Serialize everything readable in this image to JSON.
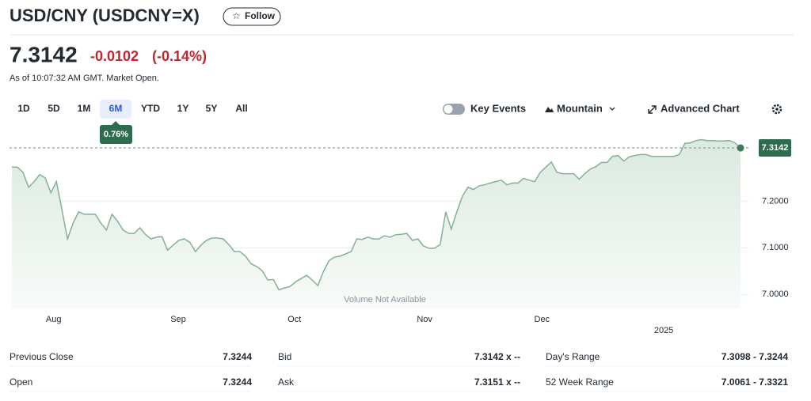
{
  "header": {
    "title": "USD/CNY (USDCNY=X)",
    "follow": "Follow",
    "price": "7.3142",
    "change": "-0.0102",
    "change_pct": "(-0.14%)",
    "as_of": "As of 10:07:32 AM GMT. Market Open."
  },
  "toolbar": {
    "ranges": [
      "1D",
      "5D",
      "1M",
      "6M",
      "YTD",
      "1Y",
      "5Y",
      "All"
    ],
    "tooltip": "0.76%",
    "key_events": "Key Events",
    "chart_style": "Mountain",
    "advanced": "Advanced Chart"
  },
  "chart_data": {
    "type": "area",
    "color": "#84b098",
    "grid": true,
    "values": [
      7.273,
      7.273,
      7.262,
      7.23,
      7.242,
      7.257,
      7.25,
      7.218,
      7.242,
      7.182,
      7.119,
      7.153,
      7.177,
      7.172,
      7.172,
      7.172,
      7.153,
      7.138,
      7.172,
      7.157,
      7.138,
      7.131,
      7.131,
      7.143,
      7.129,
      7.119,
      7.123,
      7.124,
      7.095,
      7.106,
      7.116,
      7.119,
      7.112,
      7.092,
      7.106,
      7.116,
      7.121,
      7.121,
      7.119,
      7.107,
      7.092,
      7.092,
      7.082,
      7.066,
      7.06,
      7.051,
      7.031,
      7.032,
      7.01,
      7.014,
      7.017,
      7.027,
      7.034,
      7.041,
      7.031,
      7.019,
      7.049,
      7.072,
      7.08,
      7.082,
      7.087,
      7.092,
      7.119,
      7.118,
      7.123,
      7.119,
      7.119,
      7.126,
      7.123,
      7.128,
      7.129,
      7.131,
      7.116,
      7.119,
      7.104,
      7.099,
      7.099,
      7.107,
      7.177,
      7.14,
      7.177,
      7.211,
      7.23,
      7.225,
      7.233,
      7.235,
      7.239,
      7.242,
      7.245,
      7.235,
      7.239,
      7.239,
      7.249,
      7.245,
      7.242,
      7.262,
      7.273,
      7.284,
      7.262,
      7.259,
      7.259,
      7.259,
      7.247,
      7.259,
      7.269,
      7.274,
      7.283,
      7.283,
      7.296,
      7.298,
      7.286,
      7.295,
      7.298,
      7.3,
      7.3,
      7.296,
      7.296,
      7.296,
      7.296,
      7.296,
      7.3,
      7.324,
      7.325,
      7.33,
      7.332,
      7.33,
      7.33,
      7.329,
      7.329,
      7.33,
      7.325,
      7.3142
    ],
    "xlim": [
      0,
      131
    ],
    "xticks": [
      {
        "value": 7.5,
        "label": "Aug"
      },
      {
        "value": 29.9,
        "label": "Sep"
      },
      {
        "value": 50.8,
        "label": "Oct"
      },
      {
        "value": 74.2,
        "label": "Nov"
      },
      {
        "value": 95.3,
        "label": "Dec"
      },
      {
        "value": 117.2,
        "label": "2025"
      }
    ],
    "ylim": [
      6.97,
      7.36
    ],
    "yticks": [
      {
        "value": 7,
        "label": "7.0000"
      },
      {
        "value": 7.1,
        "label": "7.1000"
      },
      {
        "value": 7.2,
        "label": "7.2000"
      }
    ],
    "annotation": "Volume Not Available"
  },
  "stats": {
    "rows": [
      [
        "Previous Close",
        "7.3244",
        "Bid",
        "7.3142 x --",
        "Day's Range",
        "7.3098 - 7.3244"
      ],
      [
        "Open",
        "7.3244",
        "Ask",
        "7.3151 x --",
        "52 Week Range",
        "7.0061 - 7.3321"
      ]
    ]
  }
}
